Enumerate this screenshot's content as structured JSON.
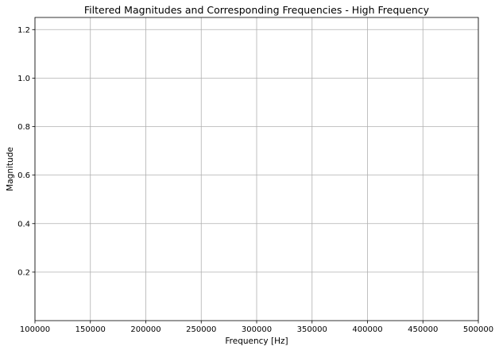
{
  "chart_data": {
    "type": "scatter",
    "title": "Filtered Magnitudes and Corresponding Frequencies - High Frequency",
    "xlabel": "Frequency [Hz]",
    "ylabel": "Magnitude",
    "xlim": [
      100000,
      500000
    ],
    "ylim": [
      0,
      1.25
    ],
    "xticks": [
      100000,
      150000,
      200000,
      250000,
      300000,
      350000,
      400000,
      450000,
      500000
    ],
    "xtick_labels": [
      "100000",
      "150000",
      "200000",
      "250000",
      "300000",
      "350000",
      "400000",
      "450000",
      "500000"
    ],
    "yticks": [
      0.2,
      0.4,
      0.6,
      0.8,
      1.0,
      1.2
    ],
    "ytick_labels": [
      "0.2",
      "0.4",
      "0.6",
      "0.8",
      "1.0",
      "1.2"
    ],
    "grid": true,
    "series": []
  }
}
